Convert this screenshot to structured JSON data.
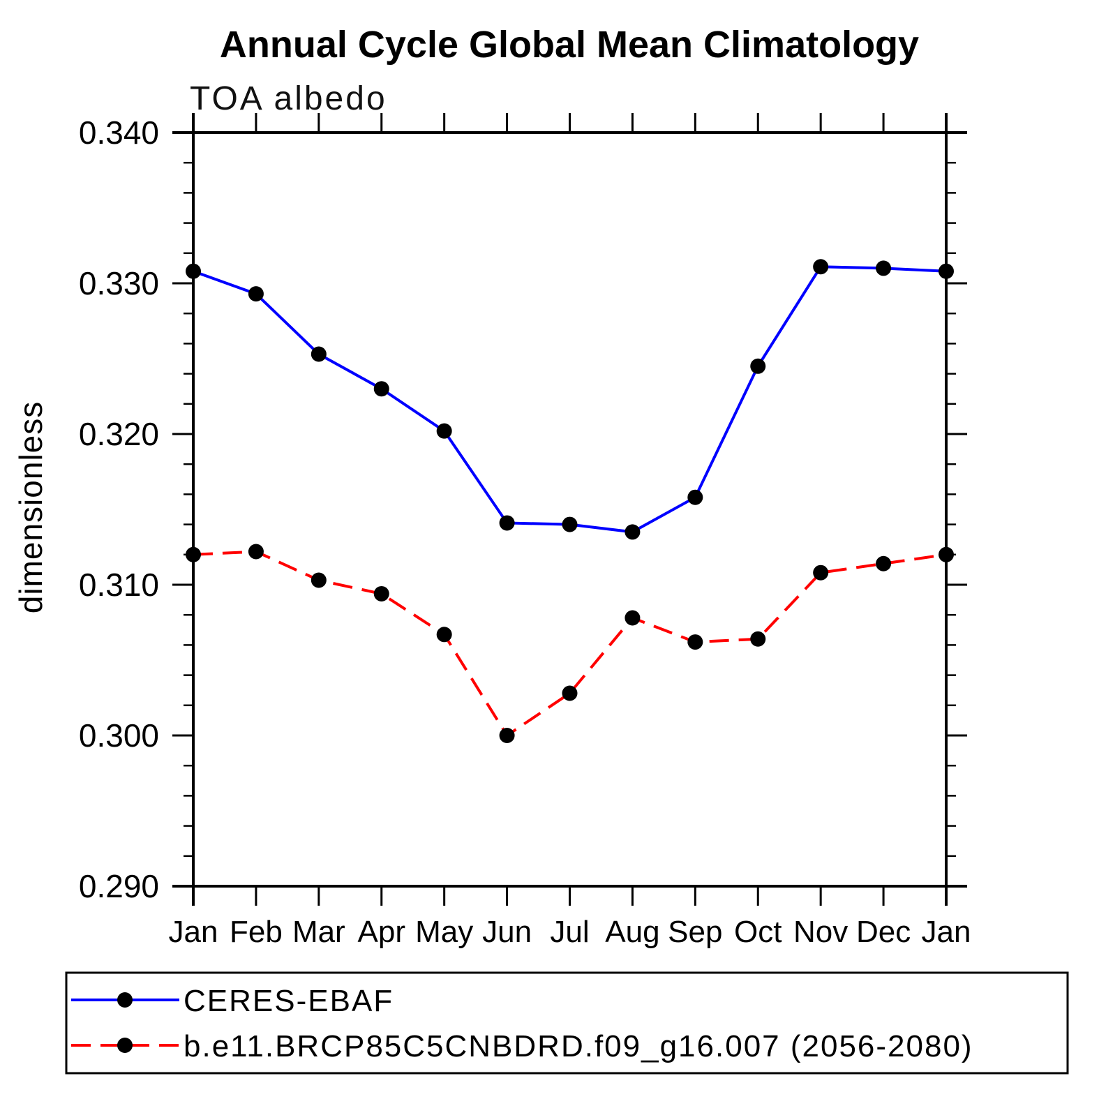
{
  "title": "Annual Cycle Global Mean Climatology",
  "subtitle": "TOA albedo",
  "ylabel": "dimensionless",
  "chart_data": {
    "type": "line",
    "categories": [
      "Jan",
      "Feb",
      "Mar",
      "Apr",
      "May",
      "Jun",
      "Jul",
      "Aug",
      "Sep",
      "Oct",
      "Nov",
      "Dec",
      "Jan"
    ],
    "series": [
      {
        "name": "CERES-EBAF",
        "color": "#0000ff",
        "line_style": "solid",
        "marker": "filled-circle",
        "marker_color": "#000000",
        "values": [
          0.3308,
          0.3293,
          0.3253,
          0.323,
          0.3202,
          0.3141,
          0.314,
          0.3135,
          0.3158,
          0.3245,
          0.3311,
          0.331,
          0.3308
        ]
      },
      {
        "name": "b.e11.BRCP85C5CNBDRD.f09_g16.007 (2056-2080)",
        "color": "#ff0000",
        "line_style": "dashed",
        "marker": "filled-circle",
        "marker_color": "#000000",
        "values": [
          0.312,
          0.3122,
          0.3103,
          0.3094,
          0.3067,
          0.3,
          0.3028,
          0.3078,
          0.3062,
          0.3064,
          0.3108,
          0.3114,
          0.312
        ]
      }
    ],
    "ylim": [
      0.29,
      0.34
    ],
    "ytick_major_step": 0.01,
    "ytick_minor_step": 0.002,
    "ytick_labels": [
      "0.290",
      "0.300",
      "0.310",
      "0.320",
      "0.330",
      "0.340"
    ],
    "grid": false,
    "legend_position": "bottom"
  }
}
